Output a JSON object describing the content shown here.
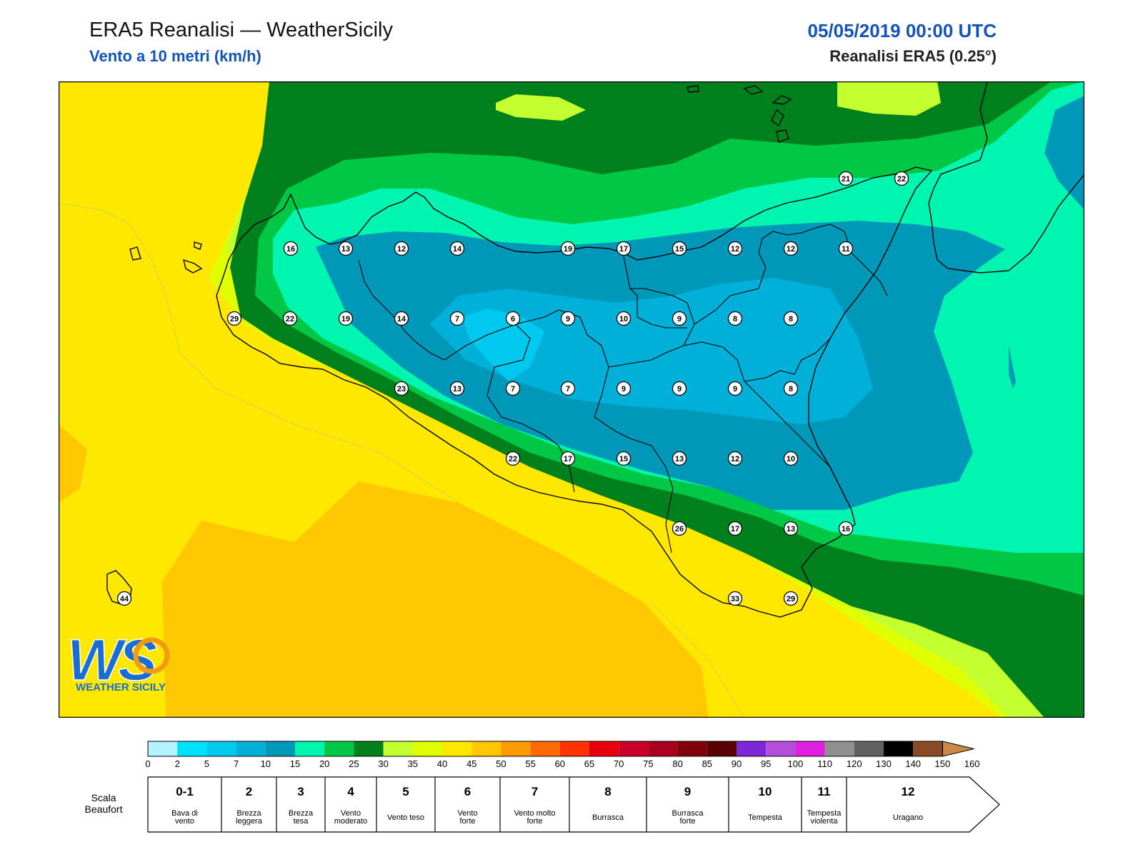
{
  "header": {
    "title": "ERA5 Reanalisi — WeatherSicily",
    "subtitle": "Vento a 10 metri (km/h)",
    "datetime": "05/05/2019 00:00 UTC",
    "source": "Reanalisi ERA5 (0.25°)"
  },
  "logo": {
    "letters": "WS",
    "caption": "WEATHER SICILY"
  },
  "stations": [
    {
      "v": "21"
    },
    {
      "v": "22"
    },
    {
      "v": "16"
    },
    {
      "v": "13"
    },
    {
      "v": "12"
    },
    {
      "v": "14"
    },
    {
      "v": "19"
    },
    {
      "v": "17"
    },
    {
      "v": "15"
    },
    {
      "v": "12"
    },
    {
      "v": "12"
    },
    {
      "v": "11"
    },
    {
      "v": "29"
    },
    {
      "v": "22"
    },
    {
      "v": "19"
    },
    {
      "v": "14"
    },
    {
      "v": "7"
    },
    {
      "v": "6"
    },
    {
      "v": "9"
    },
    {
      "v": "10"
    },
    {
      "v": "9"
    },
    {
      "v": "8"
    },
    {
      "v": "8"
    },
    {
      "v": "23"
    },
    {
      "v": "13"
    },
    {
      "v": "7"
    },
    {
      "v": "7"
    },
    {
      "v": "9"
    },
    {
      "v": "9"
    },
    {
      "v": "9"
    },
    {
      "v": "8"
    },
    {
      "v": "22"
    },
    {
      "v": "17"
    },
    {
      "v": "15"
    },
    {
      "v": "13"
    },
    {
      "v": "12"
    },
    {
      "v": "10"
    },
    {
      "v": "26"
    },
    {
      "v": "17"
    },
    {
      "v": "13"
    },
    {
      "v": "16"
    },
    {
      "v": "33"
    },
    {
      "v": "29"
    },
    {
      "v": "44"
    }
  ],
  "colorbar": {
    "colors": [
      "#b3f3ff",
      "#00e0ff",
      "#00c9f0",
      "#00b0d8",
      "#0098b8",
      "#00f6b0",
      "#00c844",
      "#00801c",
      "#c4ff30",
      "#e0ff00",
      "#ffe800",
      "#ffc800",
      "#ff9a00",
      "#ff6a00",
      "#ff3300",
      "#e8000c",
      "#c8002a",
      "#a8001c",
      "#80000a",
      "#580004",
      "#7c28d6",
      "#b44cdc",
      "#e020e0",
      "#909090",
      "#606060",
      "#000000",
      "#8a4a24",
      "#cc8848"
    ],
    "ticks": [
      "0",
      "2",
      "5",
      "7",
      "10",
      "15",
      "20",
      "25",
      "30",
      "35",
      "40",
      "45",
      "50",
      "55",
      "60",
      "65",
      "70",
      "75",
      "80",
      "85",
      "90",
      "95",
      "100",
      "110",
      "120",
      "130",
      "140",
      "150",
      "160"
    ]
  },
  "beaufort": {
    "label_line1": "Scala",
    "label_line2": "Beaufort",
    "classes": [
      {
        "num": "0-1",
        "name": [
          "Bava di",
          "vento"
        ]
      },
      {
        "num": "2",
        "name": [
          "Brezza",
          "leggera"
        ]
      },
      {
        "num": "3",
        "name": [
          "Brezza",
          "tesa"
        ]
      },
      {
        "num": "4",
        "name": [
          "Vento",
          "moderato"
        ]
      },
      {
        "num": "5",
        "name": [
          "Vento teso"
        ]
      },
      {
        "num": "6",
        "name": [
          "Vento",
          "forte"
        ]
      },
      {
        "num": "7",
        "name": [
          "Vento molto",
          "forte"
        ]
      },
      {
        "num": "8",
        "name": [
          "Burrasca"
        ]
      },
      {
        "num": "9",
        "name": [
          "Burrasca",
          "forte"
        ]
      },
      {
        "num": "10",
        "name": [
          "Tempesta"
        ]
      },
      {
        "num": "11",
        "name": [
          "Tempesta",
          "violenta"
        ]
      },
      {
        "num": "12",
        "name": [
          "Uragano"
        ]
      }
    ]
  }
}
